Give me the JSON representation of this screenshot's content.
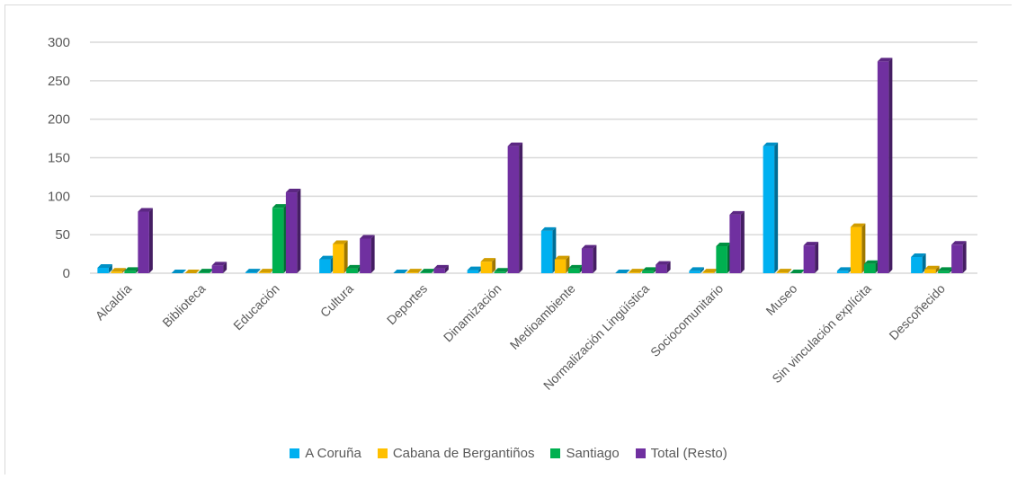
{
  "chart_data": {
    "type": "bar",
    "title": "",
    "xlabel": "",
    "ylabel": "",
    "ylim": [
      0,
      300
    ],
    "yticks": [
      0,
      50,
      100,
      150,
      200,
      250,
      300
    ],
    "grid": true,
    "legend_position": "bottom",
    "categories": [
      "Alcaldía",
      "Biblioteca",
      "Educación",
      "Cultura",
      "Deportes",
      "Dinamización",
      "Medioambiente",
      "Normalización Lingüística",
      "Sociocomunitario",
      "Museo",
      "Sin vinculación explícita",
      "Descoñecido"
    ],
    "series": [
      {
        "name": "A Coruña",
        "color": "#00b0f0",
        "values": [
          7,
          0,
          1,
          18,
          0,
          4,
          55,
          0,
          3,
          165,
          3,
          21
        ]
      },
      {
        "name": "Cabana de Bergantiños",
        "color": "#ffc000",
        "values": [
          2,
          0,
          1,
          38,
          1,
          15,
          18,
          1,
          1,
          1,
          60,
          5
        ]
      },
      {
        "name": "Santiago",
        "color": "#00b050",
        "values": [
          3,
          1,
          85,
          6,
          1,
          2,
          6,
          3,
          35,
          0,
          12,
          3
        ]
      },
      {
        "name": "Total (Resto)",
        "color": "#7030a0",
        "values": [
          80,
          10,
          105,
          45,
          6,
          165,
          32,
          11,
          76,
          36,
          275,
          37
        ]
      }
    ]
  }
}
